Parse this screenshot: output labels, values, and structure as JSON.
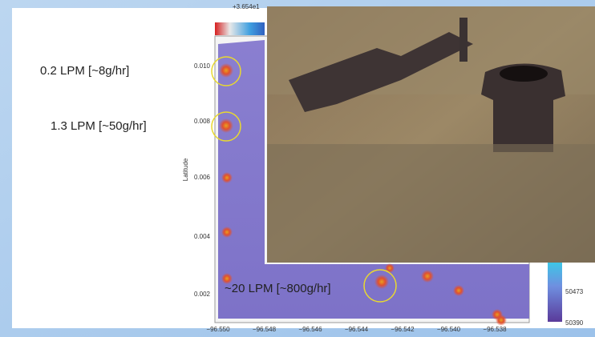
{
  "slide": {
    "flow_labels": [
      "0.2 LPM [~8g/hr]",
      "1.3 LPM [~50g/hr]",
      "~20 LPM [~800g/hr]"
    ],
    "plot": {
      "offset_label": "+3.654e1",
      "y_axis_label": "Latitude",
      "y_tick_labels": [
        "0.010",
        "0.008",
        "0.006",
        "0.004",
        "0.002"
      ],
      "x_tick_labels": [
        "−96.550",
        "−96.548",
        "−96.546",
        "−96.544",
        "−96.542",
        "−96.540",
        "−96.538"
      ],
      "colorbar_labels": [
        "50473",
        "50390"
      ]
    }
  }
}
